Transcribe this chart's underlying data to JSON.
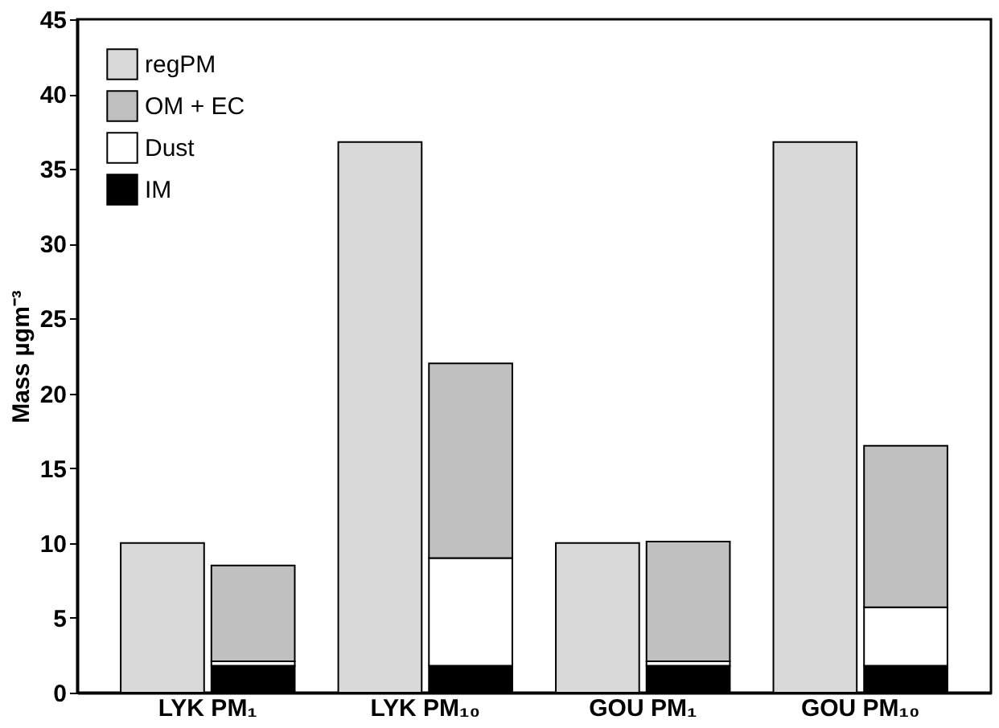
{
  "chart_data": {
    "type": "bar",
    "ylabel": "Mass µgm⁻³",
    "categories": [
      "LYK PM₁",
      "LYK PM₁₀",
      "GOU PM₁",
      "GOU PM₁₀"
    ],
    "series": [
      {
        "name": "regPM",
        "color": "#d9d9d9",
        "values": [
          10,
          36.8,
          10,
          36.8
        ]
      },
      {
        "name": "IM",
        "color": "#000000",
        "base": [
          0,
          0,
          0,
          0
        ],
        "values": [
          1.8,
          1.8,
          1.8,
          1.8
        ]
      },
      {
        "name": "Dust",
        "color": "#ffffff",
        "base": [
          1.8,
          1.8,
          1.8,
          1.8
        ],
        "values": [
          0.3,
          7.2,
          0.3,
          3.9
        ]
      },
      {
        "name": "OM + EC",
        "color": "#c0c0c0",
        "base": [
          2.1,
          9,
          2.1,
          5.7
        ],
        "values": [
          6.4,
          13,
          8,
          10.8
        ]
      }
    ],
    "ylim": [
      0,
      45
    ],
    "yticks": [
      0,
      5,
      10,
      15,
      20,
      25,
      30,
      35,
      40,
      45
    ],
    "grid": false,
    "legend": "top left"
  }
}
